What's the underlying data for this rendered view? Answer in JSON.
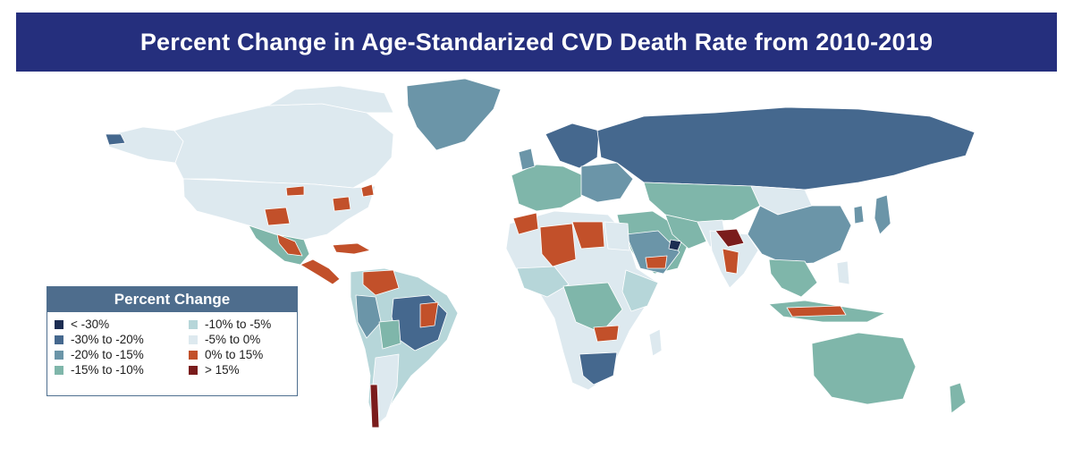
{
  "title": "Percent Change in Age-Standarized CVD Death Rate from 2010-2019",
  "colors": {
    "lt_minus30": "#1c2d52",
    "m30_m20": "#45688e",
    "m20_m15": "#6b95a8",
    "m15_m10": "#7fb6aa",
    "m10_m5": "#b6d6d9",
    "m5_0": "#dde9ef",
    "p0_15": "#c2502a",
    "gt15": "#7a1c1c",
    "title_bg": "#252f7d",
    "legend_header_bg": "#4e6d8d"
  },
  "legend": {
    "title": "Percent Change",
    "items": [
      {
        "label": "< -30%",
        "color": "#1c2d52"
      },
      {
        "label": "-10% to -5%",
        "color": "#b6d6d9"
      },
      {
        "label": "-30% to -20%",
        "color": "#45688e"
      },
      {
        "label": "-5% to 0%",
        "color": "#dde9ef"
      },
      {
        "label": "-20% to -15%",
        "color": "#6b95a8"
      },
      {
        "label": "0% to 15%",
        "color": "#c2502a"
      },
      {
        "label": "-15% to  -10%",
        "color": "#7fb6aa"
      },
      {
        "label": "> 15%",
        "color": "#7a1c1c"
      }
    ]
  }
}
